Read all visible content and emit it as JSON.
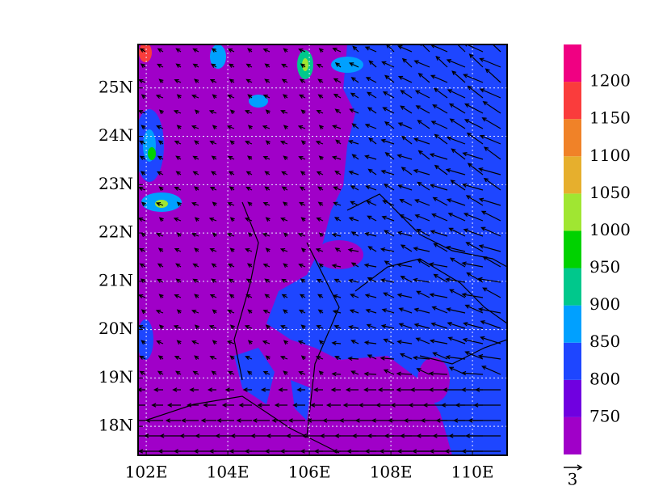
{
  "map": {
    "xlim": [
      101.8,
      110.85
    ],
    "ylim": [
      17.4,
      25.9
    ],
    "xticks": [
      {
        "value": 102,
        "label": "102E"
      },
      {
        "value": 104,
        "label": "104E"
      },
      {
        "value": 106,
        "label": "106E"
      },
      {
        "value": 108,
        "label": "108E"
      },
      {
        "value": 110,
        "label": "110E"
      }
    ],
    "yticks": [
      {
        "value": 18,
        "label": "18N"
      },
      {
        "value": 19,
        "label": "19N"
      },
      {
        "value": 20,
        "label": "20N"
      },
      {
        "value": 21,
        "label": "21N"
      },
      {
        "value": 22,
        "label": "22N"
      },
      {
        "value": 23,
        "label": "23N"
      },
      {
        "value": 24,
        "label": "24N"
      },
      {
        "value": 25,
        "label": "25N"
      }
    ],
    "colorbar": {
      "levels": [
        750,
        800,
        850,
        900,
        950,
        1000,
        1050,
        1100,
        1150,
        1200
      ],
      "colors": [
        "#a000c8",
        "#7000e0",
        "#1e46ff",
        "#00a0ff",
        "#00c88c",
        "#00d200",
        "#a0e632",
        "#e6af2d",
        "#f08228",
        "#fa3c3c",
        "#f00082"
      ]
    },
    "reference_vector": {
      "label": "3"
    }
  }
}
